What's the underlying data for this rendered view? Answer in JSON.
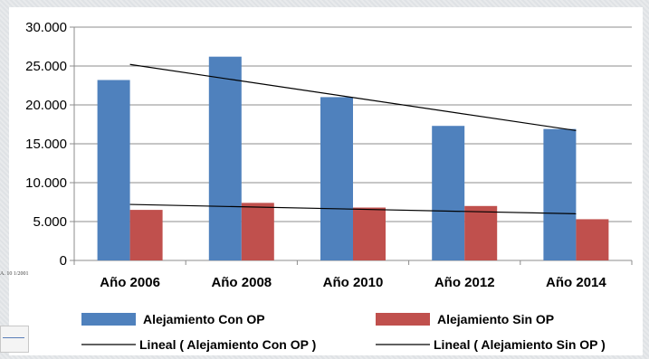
{
  "chart_data": {
    "type": "bar",
    "title": "",
    "xlabel": "",
    "ylabel": "",
    "categories": [
      "Año 2006",
      "Año 2008",
      "Año 2010",
      "Año 2012",
      "Año 2014"
    ],
    "ylim": [
      0,
      30000
    ],
    "y_ticks": [
      "0",
      "5.000",
      "10.000",
      "15.000",
      "20.000",
      "25.000",
      "30.000"
    ],
    "grid": true,
    "legend_position": "bottom",
    "series": [
      {
        "name": "Alejamiento    Con OP",
        "color": "#4f81bd",
        "values": [
          23200,
          26200,
          21000,
          17300,
          16900
        ]
      },
      {
        "name": "Alejamiento   Sin OP",
        "color": "#c0504d",
        "values": [
          6500,
          7400,
          6800,
          7000,
          5300
        ]
      }
    ],
    "trendlines": [
      {
        "name": "Lineal ( Alejamiento    Con OP  )",
        "of_series": "Alejamiento    Con OP",
        "start": 25200,
        "end": 16700,
        "color": "#000000"
      },
      {
        "name": "Lineal ( Alejamiento   Sin OP  )",
        "of_series": "Alejamiento   Sin OP",
        "start": 7200,
        "end": 6000,
        "color": "#000000"
      }
    ]
  },
  "artifacts": {
    "left_edge_text": "A. 10 1/2001"
  }
}
